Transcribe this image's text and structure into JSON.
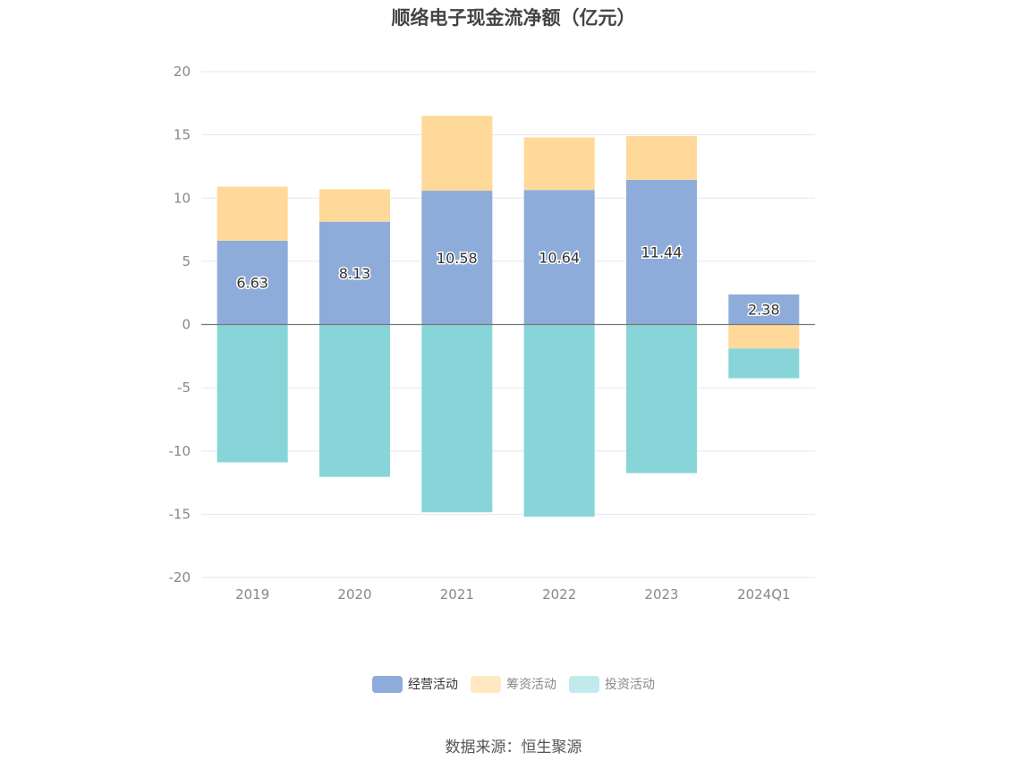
{
  "chart_data": {
    "type": "bar",
    "stacked": true,
    "title": "顺络电子现金流净额（亿元）",
    "categories": [
      "2019",
      "2020",
      "2021",
      "2022",
      "2023",
      "2024Q1"
    ],
    "ylim": [
      -20,
      20
    ],
    "yticks": [
      20,
      15,
      10,
      5,
      0,
      -5,
      -10,
      -15,
      -20
    ],
    "grid": true,
    "legend_position": "bottom",
    "series": [
      {
        "name": "经营活动",
        "color": "#8eacd9",
        "values": [
          6.63,
          8.13,
          10.58,
          10.64,
          11.44,
          2.38
        ],
        "labels": [
          "6.63",
          "8.13",
          "10.58",
          "10.64",
          "11.44",
          "2.38"
        ]
      },
      {
        "name": "筹资活动",
        "color": "#ffd999",
        "values": [
          4.27,
          2.57,
          5.92,
          4.16,
          3.46,
          -1.9
        ]
      },
      {
        "name": "投资活动",
        "color": "#88d5d9",
        "values": [
          -10.9,
          -12.05,
          -14.85,
          -15.2,
          -11.75,
          -2.35
        ]
      }
    ],
    "source": "数据来源：恒生聚源"
  },
  "legend_colors": {
    "经营活动": "#8eacd9",
    "筹资活动": "#ffe8c2",
    "投资活动": "#c2eaec"
  }
}
